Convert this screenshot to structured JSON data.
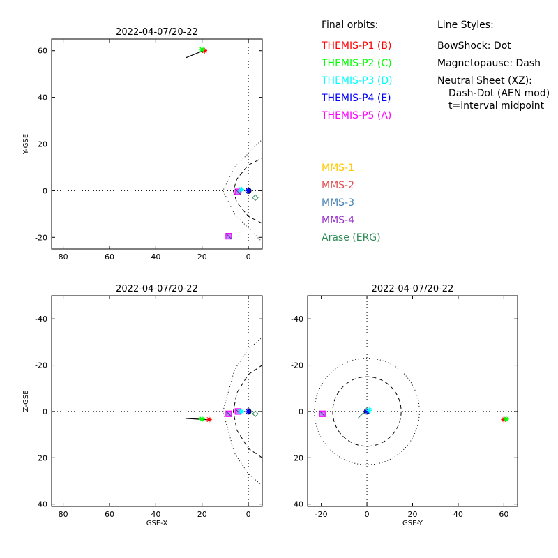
{
  "legend": {
    "final_orbits_title": "Final orbits:",
    "line_styles_title": "Line Styles:",
    "line_styles": [
      "BowShock: Dot",
      "Magnetopause: Dash",
      "Neutral Sheet (XZ):",
      "Dash-Dot (AEN mod)",
      "t=interval midpoint"
    ],
    "spacecraft": [
      {
        "label": "THEMIS-P1 (B)",
        "color": "#ff0000"
      },
      {
        "label": "THEMIS-P2 (C)",
        "color": "#00ff00"
      },
      {
        "label": "THEMIS-P3 (D)",
        "color": "#00ffff"
      },
      {
        "label": "THEMIS-P4 (E)",
        "color": "#0000ff"
      },
      {
        "label": "THEMIS-P5 (A)",
        "color": "#ff00ff"
      },
      {
        "label": "MMS-1",
        "color": "#ffc800"
      },
      {
        "label": "MMS-2",
        "color": "#e05050"
      },
      {
        "label": "MMS-3",
        "color": "#4682b4"
      },
      {
        "label": "MMS-4",
        "color": "#9932cc"
      },
      {
        "label": "Arase (ERG)",
        "color": "#2e8b57"
      }
    ]
  },
  "chart_data": [
    {
      "type": "scatter",
      "title": "2022-04-07/20-22",
      "xlabel": "",
      "ylabel": "Y-GSE",
      "xlim": [
        85,
        -6
      ],
      "ylim": [
        65,
        -25
      ],
      "x_ticks": [
        80,
        60,
        40,
        20,
        0
      ],
      "y_ticks": [
        -20,
        0,
        20,
        40,
        60
      ],
      "boundaries": {
        "bowshock": [
          [
            -6,
            -22
          ],
          [
            0,
            -16
          ],
          [
            6,
            -10
          ],
          [
            11,
            0
          ],
          [
            6,
            10
          ],
          [
            0,
            16
          ],
          [
            -6,
            22
          ]
        ],
        "magnetopause": [
          [
            -6,
            -14
          ],
          [
            0,
            -11
          ],
          [
            5,
            -5
          ],
          [
            6.5,
            0
          ],
          [
            5,
            5
          ],
          [
            0,
            11
          ],
          [
            -6,
            14
          ]
        ]
      },
      "trajectories": [
        {
          "name": "Arase (ERG)",
          "points": [
            [
              27,
              57
            ],
            [
              22,
              59
            ],
            [
              18,
              60.5
            ]
          ]
        }
      ],
      "points": [
        {
          "name": "THEMIS-P1 (B)",
          "x": 19,
          "y": 60
        },
        {
          "name": "THEMIS-P2 (C)",
          "x": 20,
          "y": 60.5
        },
        {
          "name": "THEMIS-P5 (A)",
          "x": 8.5,
          "y": -19.5
        },
        {
          "name": "THEMIS-P5 (A)",
          "x": 4.5,
          "y": -0.5
        },
        {
          "name": "THEMIS-P3 (D)",
          "x": 3,
          "y": 0.5
        },
        {
          "name": "THEMIS-P4 (E)",
          "x": 0,
          "y": 0
        },
        {
          "name": "Arase (ERG)",
          "x": -3,
          "y": -3
        }
      ]
    },
    {
      "type": "scatter",
      "title": "2022-04-07/20-22",
      "xlabel": "GSE-X",
      "ylabel": "Z-GSE",
      "xlim": [
        85,
        -6
      ],
      "ylim": [
        -50,
        41
      ],
      "x_ticks": [
        80,
        60,
        40,
        20,
        0
      ],
      "y_ticks": [
        -40,
        -20,
        0,
        20,
        40
      ],
      "boundaries": {
        "bowshock": [
          [
            -6,
            32
          ],
          [
            0,
            27
          ],
          [
            6,
            18
          ],
          [
            11,
            0
          ],
          [
            6,
            -18
          ],
          [
            0,
            -27
          ],
          [
            -6,
            -32
          ]
        ],
        "magnetopause": [
          [
            -6,
            20
          ],
          [
            0,
            16
          ],
          [
            5,
            8
          ],
          [
            6.5,
            0
          ],
          [
            5,
            -8
          ],
          [
            0,
            -16
          ],
          [
            -6,
            -20
          ]
        ]
      },
      "trajectories": [
        {
          "name": "Arase (ERG)",
          "points": [
            [
              27,
              3
            ],
            [
              22,
              3.3
            ],
            [
              17,
              3.6
            ]
          ]
        }
      ],
      "points": [
        {
          "name": "THEMIS-P1 (B)",
          "x": 17,
          "y": 3.5
        },
        {
          "name": "THEMIS-P2 (C)",
          "x": 20,
          "y": 3.3
        },
        {
          "name": "THEMIS-P5 (A)",
          "x": 8.5,
          "y": 1
        },
        {
          "name": "THEMIS-P5 (A)",
          "x": 4.5,
          "y": 0
        },
        {
          "name": "THEMIS-P3 (D)",
          "x": 3,
          "y": 0
        },
        {
          "name": "THEMIS-P4 (E)",
          "x": 0,
          "y": 0
        },
        {
          "name": "Arase (ERG)",
          "x": -3,
          "y": 1
        }
      ]
    },
    {
      "type": "scatter",
      "title": "2022-04-07/20-22",
      "xlabel": "GSE-Y",
      "ylabel": "",
      "xlim": [
        -26,
        66
      ],
      "ylim": [
        -50,
        41
      ],
      "x_ticks": [
        -20,
        0,
        20,
        40,
        60
      ],
      "y_ticks": [
        -40,
        -20,
        0,
        20,
        40
      ],
      "boundaries": {
        "bowshock_radius": 23,
        "magnetopause_radius": 15
      },
      "trajectories": [
        {
          "name": "Arase (ERG)",
          "points": [
            [
              -4,
              3
            ],
            [
              -2,
              1
            ],
            [
              0,
              0
            ]
          ]
        }
      ],
      "points": [
        {
          "name": "THEMIS-P5 (A)",
          "x": -19.5,
          "y": 1
        },
        {
          "name": "THEMIS-P1 (B)",
          "x": 60,
          "y": 3.5
        },
        {
          "name": "THEMIS-P2 (C)",
          "x": 61,
          "y": 3.3
        },
        {
          "name": "THEMIS-P4 (E)",
          "x": 0,
          "y": 0
        },
        {
          "name": "THEMIS-P3 (D)",
          "x": 1,
          "y": -0.5
        }
      ]
    }
  ]
}
